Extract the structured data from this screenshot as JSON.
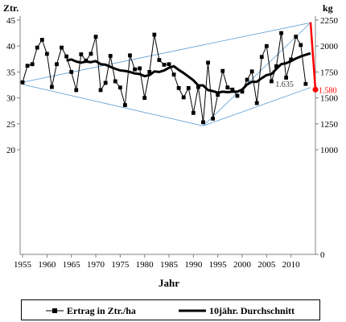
{
  "chart_data": {
    "type": "line",
    "left_axis_label": "Ztr.",
    "right_axis_label": "kg",
    "xlabel": "Jahr",
    "x_ticks": [
      1955,
      1960,
      1965,
      1970,
      1975,
      1980,
      1985,
      1990,
      1995,
      2000,
      2005,
      2010
    ],
    "xlim": [
      1954.5,
      2015
    ],
    "left_ticks": [
      20,
      25,
      30,
      35,
      40,
      45
    ],
    "left_ylim": [
      20,
      45
    ],
    "right_ticks": [
      0,
      1000,
      1250,
      1500,
      1750,
      2000,
      2250
    ],
    "right_scale": {
      "kg_at_left_20": 1000,
      "kg_per_ztr": 50
    },
    "series": [
      {
        "name": "Ertrag in Ztr./ha",
        "color": "#000000",
        "marker": "square",
        "segments": [
          {
            "x": [
              1955,
              1956,
              1957,
              1958,
              1959,
              1960,
              1961,
              1962,
              1963,
              1964,
              1965,
              1966,
              1967,
              1968,
              1969,
              1970,
              1971,
              1972,
              1973,
              1974,
              1975,
              1976,
              1977,
              1978,
              1979,
              1980,
              1981,
              1982,
              1983,
              1984,
              1985,
              1986,
              1987,
              1988,
              1989,
              1990,
              1991,
              1992,
              1993,
              1994,
              1995,
              1996,
              1997,
              1998,
              1999
            ],
            "y": [
              33,
              36.2,
              36.5,
              39.7,
              41.2,
              38.5,
              32.1,
              36.5,
              39.7,
              38,
              35,
              31.5,
              38.4,
              37.2,
              38.5,
              41.8,
              31.5,
              32.9,
              38.1,
              33.2,
              32,
              28.6,
              38.2,
              35.5,
              35.7,
              30,
              35,
              42.2,
              37.3,
              36.4,
              36.5,
              34.5,
              31.9,
              30.1,
              31.9,
              27.1,
              32.1,
              25.3,
              36.8,
              26,
              30.6,
              35.2,
              32,
              31.6,
              30.4
            ]
          },
          {
            "x": [
              2000,
              2001,
              2002,
              2003,
              2004,
              2005,
              2006,
              2007,
              2008,
              2009,
              2010,
              2011,
              2012,
              2013
            ],
            "y": [
              31.2,
              33.5,
              35.1,
              29,
              37.9,
              40,
              33.2,
              36.1,
              42.5,
              33.9,
              37.4,
              41.8,
              40.2,
              32.7
            ]
          }
        ]
      },
      {
        "name": "10jähr. Durchschnitt",
        "color": "#000000",
        "x": [
          1964,
          1965,
          1966,
          1967,
          1968,
          1969,
          1970,
          1971,
          1972,
          1973,
          1974,
          1975,
          1976,
          1977,
          1978,
          1979,
          1980,
          1981,
          1982,
          1983,
          1984,
          1985,
          1986,
          1987,
          1988,
          1989,
          1990,
          1991,
          1992,
          1993,
          1994,
          1995,
          1996,
          1997,
          1998,
          1999,
          2000,
          2001,
          2002,
          2003,
          2004,
          2005,
          2006,
          2007,
          2008,
          2009,
          2010,
          2011,
          2012,
          2013,
          2014
        ],
        "y": [
          37.2,
          37.4,
          37,
          36.8,
          37,
          36.9,
          37.1,
          36.5,
          36.4,
          36,
          35.6,
          35.3,
          35.2,
          35,
          34.7,
          34.6,
          34.2,
          34.4,
          35.1,
          35,
          35.3,
          35.8,
          36.1,
          35.4,
          34.8,
          34.1,
          33.4,
          32.4,
          32.4,
          31.5,
          31.3,
          31,
          31.2,
          31.1,
          31.2,
          31.2,
          31.6,
          32.6,
          33.1,
          33.1,
          33.8,
          34.4,
          34.6,
          35.6,
          36.5,
          36.7,
          37.1,
          37.6,
          38,
          38.3,
          38.6
        ]
      }
    ],
    "forecast_line": {
      "color": "#ff0000",
      "x": [
        2014,
        2015
      ],
      "kg": [
        2230,
        1580
      ],
      "label": "1.580"
    },
    "annotation": {
      "label": "1.635",
      "x": 2010.5,
      "kg": 1635
    },
    "trend_lines": {
      "color": "#5b9bd5",
      "lines": [
        {
          "x": [
            1955,
            1992
          ],
          "y": [
            32.6,
            24.6
          ]
        },
        {
          "x": [
            1955,
            2014
          ],
          "y": [
            33,
            44.5
          ]
        },
        {
          "x": [
            1992,
            2014
          ],
          "y": [
            24.6,
            32
          ]
        },
        {
          "x": [
            1992,
            2014
          ],
          "y": [
            24.6,
            44.5
          ]
        }
      ]
    },
    "grid": false,
    "legend_position": "bottom"
  }
}
